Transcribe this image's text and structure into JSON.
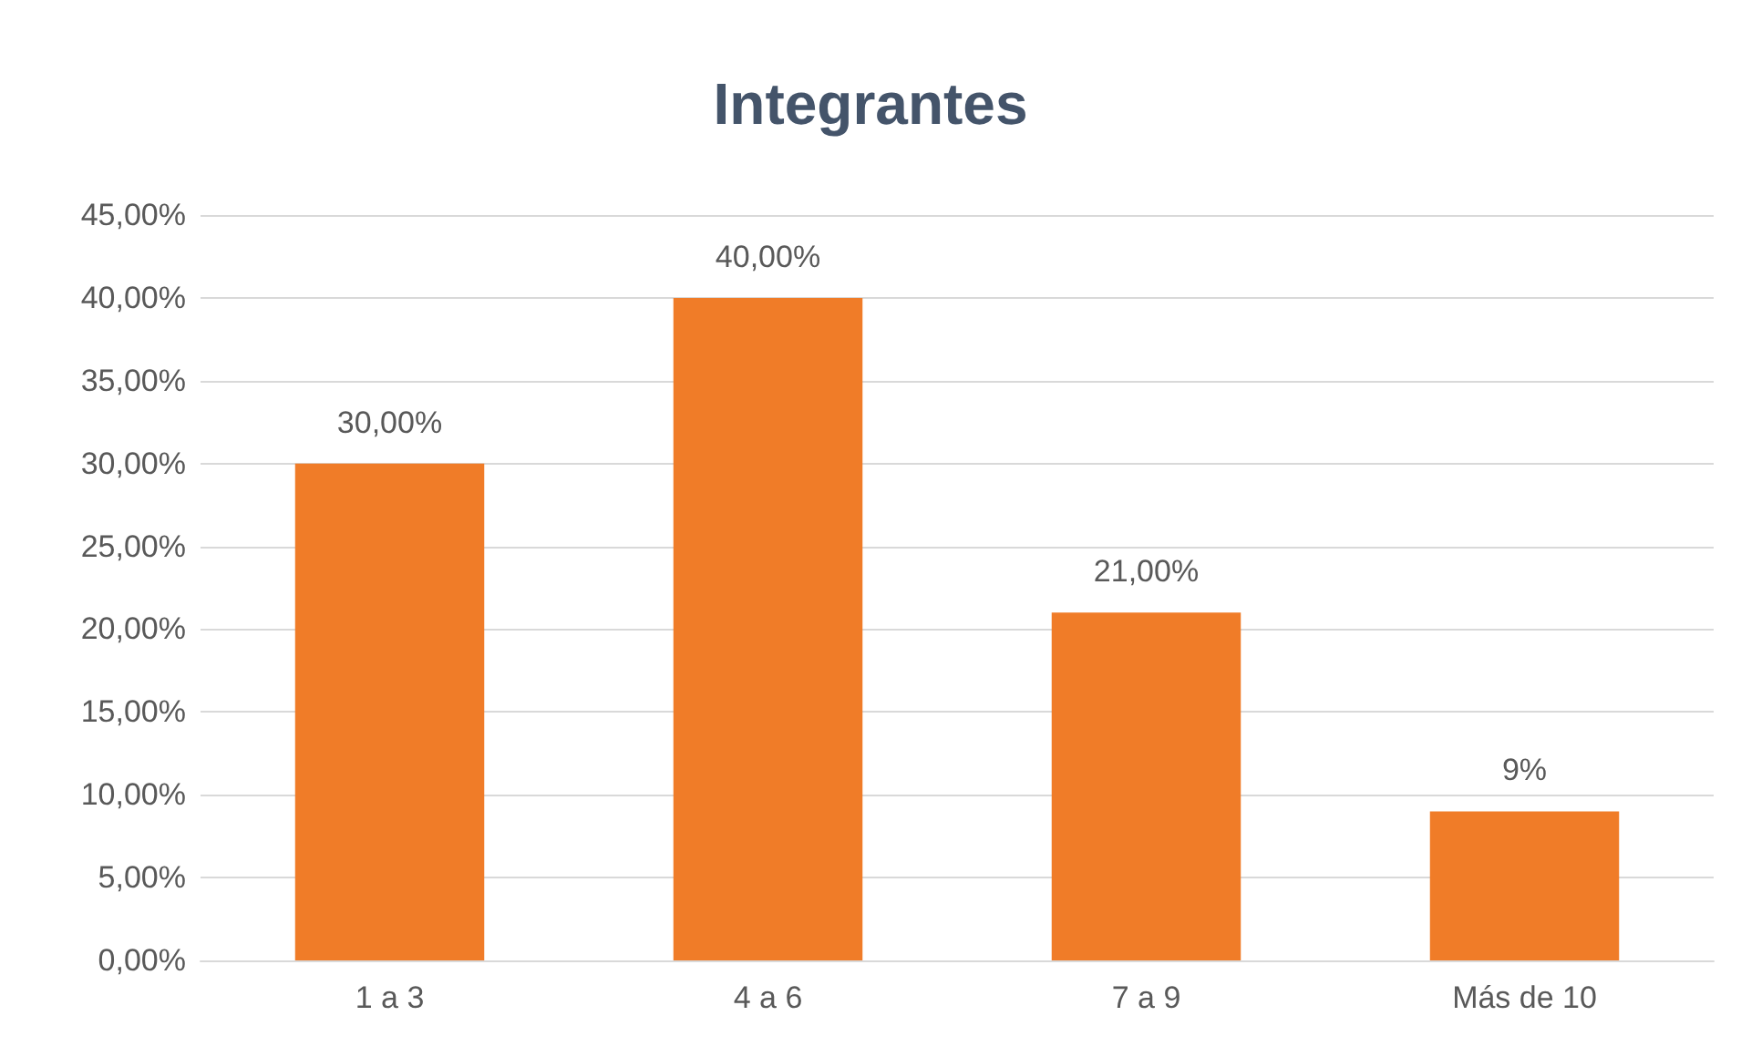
{
  "chart_data": {
    "type": "bar",
    "title": "Integrantes",
    "categories": [
      "1 a 3",
      "4 a 6",
      "7 a 9",
      "Más de 10"
    ],
    "values": [
      30,
      40,
      21,
      9
    ],
    "value_labels": [
      "30,00%",
      "40,00%",
      "21,00%",
      "9%"
    ],
    "color": "#f07c28",
    "ylim": [
      0,
      45
    ],
    "yticks": [
      {
        "value": 0,
        "label": "0,00%"
      },
      {
        "value": 5,
        "label": "5,00%"
      },
      {
        "value": 10,
        "label": "10,00%"
      },
      {
        "value": 15,
        "label": "15,00%"
      },
      {
        "value": 20,
        "label": "20,00%"
      },
      {
        "value": 25,
        "label": "25,00%"
      },
      {
        "value": 30,
        "label": "30,00%"
      },
      {
        "value": 35,
        "label": "35,00%"
      },
      {
        "value": 40,
        "label": "40,00%"
      },
      {
        "value": 45,
        "label": "45,00%"
      }
    ],
    "grid": "y"
  }
}
